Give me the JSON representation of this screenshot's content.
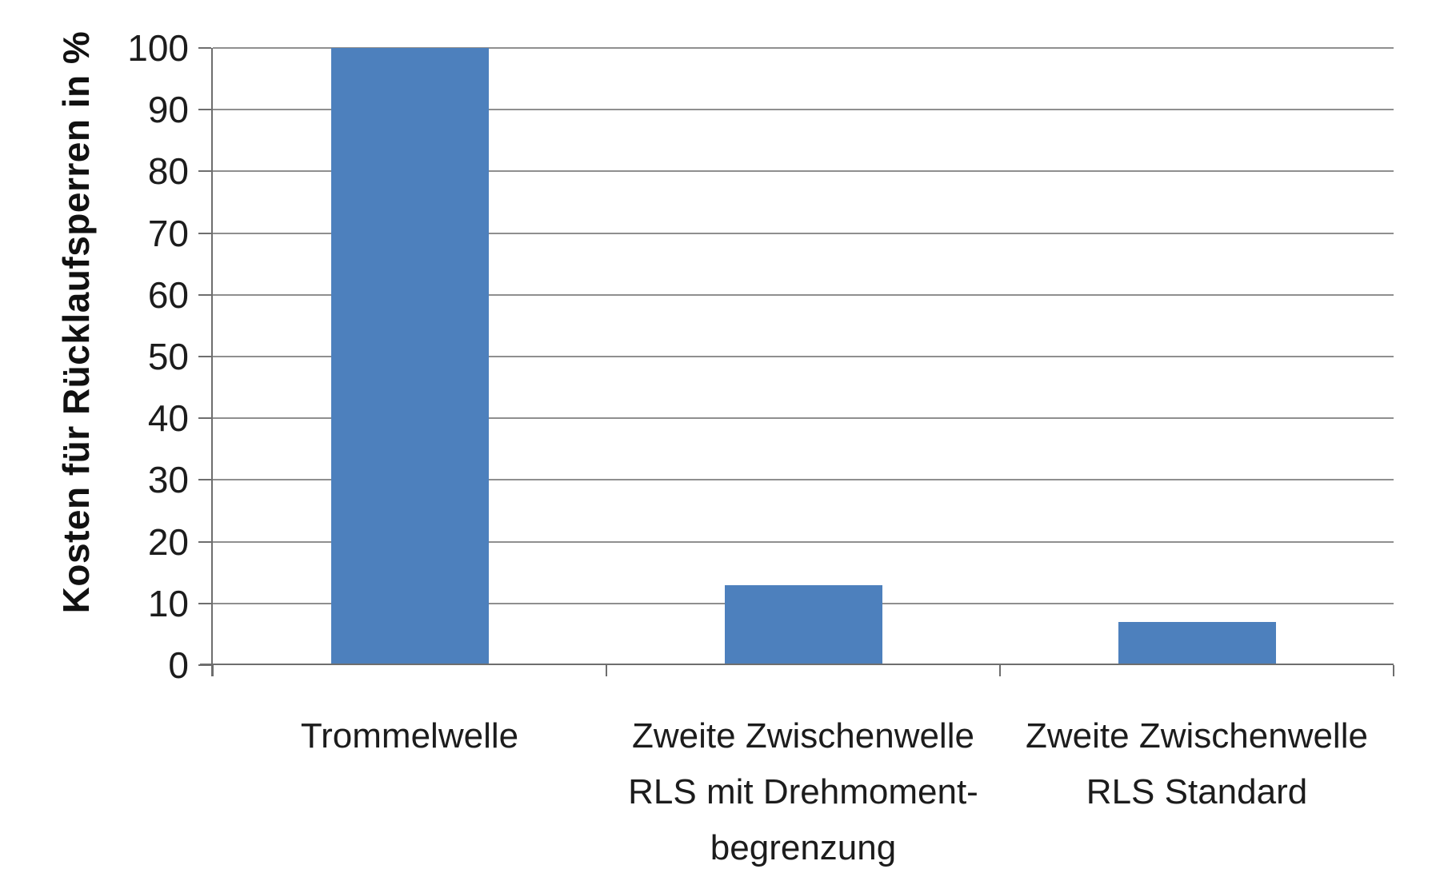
{
  "chart_data": {
    "type": "bar",
    "categories": [
      "Trommelwelle",
      "Zweite Zwischenwelle\nRLS mit Drehmoment-\nbegrenzung",
      "Zweite Zwischenwelle\nRLS Standard"
    ],
    "values": [
      100,
      13,
      7
    ],
    "title": "",
    "xlabel": "",
    "ylabel": "Kosten für Rücklaufsperren in %",
    "ylim": [
      0,
      100
    ],
    "ytick_step": 10,
    "yticks": [
      0,
      10,
      20,
      30,
      40,
      50,
      60,
      70,
      80,
      90,
      100
    ],
    "grid": "horizontal",
    "legend": false,
    "colors": {
      "bar": "#4d80bd",
      "gridline": "#8f8f8f",
      "axis": "#6e6e6e",
      "text": "#1c1c1c",
      "background": "#ffffff"
    }
  }
}
